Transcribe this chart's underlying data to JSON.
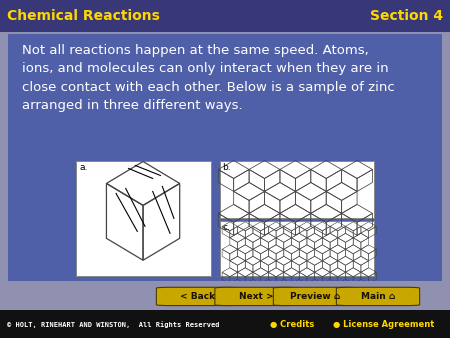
{
  "title_left": "Chemical Reactions",
  "title_right": "Section 4",
  "title_bg": "#383878",
  "title_text_color": "#FFD700",
  "title_fontsize": 10,
  "body_bg": "#5060a8",
  "body_text": "Not all reactions happen at the same speed. Atoms,\nions, and molecules can only interact when they are in\nclose contact with each other. Below is a sample of zinc\narranged in three different ways.",
  "body_text_color": "#ffffff",
  "body_fontsize": 9.5,
  "footer_bg": "#111111",
  "footer_text": "© HOLT, RINEHART AND WINSTON,  All Rights Reserved",
  "footer_text_color": "#ffffff",
  "footer_fontsize": 5.0,
  "credits_text": "● Credits",
  "license_text": "● License Agreement",
  "credits_color": "#FFD700",
  "nav_bar_bg": "#9090b0",
  "nav_buttons": [
    "< Back",
    "Next >",
    "Preview ⌂",
    "Main ⌂"
  ],
  "nav_fontsize": 6.5,
  "label_a": "a.",
  "label_b": "b.",
  "label_c": "c."
}
